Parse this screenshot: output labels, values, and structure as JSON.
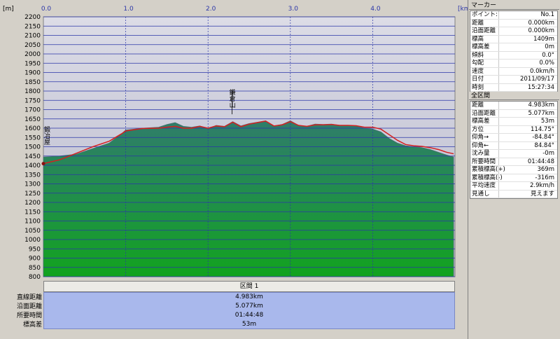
{
  "chart": {
    "y_unit": "[m]",
    "x_unit": "[km]",
    "y_ticks": [
      "2200",
      "2150",
      "2100",
      "2050",
      "2000",
      "1950",
      "1900",
      "1850",
      "1800",
      "1750",
      "1700",
      "1650",
      "1600",
      "1550",
      "1500",
      "1450",
      "1400",
      "1350",
      "1300",
      "1250",
      "1200",
      "1150",
      "1100",
      "1050",
      "1000",
      "950",
      "900",
      "850",
      "800"
    ],
    "x_ticks": [
      "0.0",
      "1.0",
      "2.0",
      "3.0",
      "4.0"
    ],
    "annotations": [
      {
        "label": "鍛冶屋",
        "x": 0.0,
        "y": 1460
      },
      {
        "label": "鎌倉山",
        "x": 2.25,
        "y": 1660
      }
    ],
    "section_title": "区間 1",
    "summary_labels": [
      "直線距離",
      "沿面距離",
      "所要時間",
      "標高差"
    ],
    "summary_values": [
      "4.983km",
      "5.077km",
      "01:44:48",
      "53m"
    ]
  },
  "chart_data": {
    "type": "area",
    "xlabel": "[km]",
    "ylabel": "[m]",
    "xlim": [
      0,
      5.0
    ],
    "ylim": [
      800,
      2200
    ],
    "grid": true,
    "series": [
      {
        "x": [
          0.0,
          0.2,
          0.4,
          0.6,
          0.8,
          0.95,
          1.0,
          1.2,
          1.4,
          1.5,
          1.6,
          1.7,
          1.8,
          1.9,
          2.0,
          2.1,
          2.2,
          2.3,
          2.4,
          2.5,
          2.6,
          2.7,
          2.8,
          2.9,
          3.0,
          3.1,
          3.2,
          3.3,
          3.4,
          3.5,
          3.6,
          3.7,
          3.8,
          3.9,
          4.0,
          4.1,
          4.2,
          4.3,
          4.4,
          4.5,
          4.6,
          4.7,
          4.8,
          4.9,
          4.983
        ],
        "y": [
          1445,
          1450,
          1460,
          1490,
          1520,
          1570,
          1590,
          1600,
          1605,
          1620,
          1630,
          1610,
          1605,
          1612,
          1598,
          1615,
          1610,
          1635,
          1612,
          1625,
          1632,
          1640,
          1612,
          1620,
          1640,
          1615,
          1610,
          1622,
          1620,
          1622,
          1615,
          1615,
          1612,
          1600,
          1595,
          1580,
          1545,
          1520,
          1505,
          1500,
          1495,
          1485,
          1470,
          1455,
          1445
        ],
        "color": "#2a8a4a"
      },
      {
        "x": [
          0.0,
          0.2,
          0.4,
          0.6,
          0.8,
          0.95,
          1.0,
          1.2,
          1.4,
          1.5,
          1.6,
          1.7,
          1.8,
          1.9,
          2.0,
          2.1,
          2.2,
          2.3,
          2.4,
          2.5,
          2.6,
          2.7,
          2.8,
          2.9,
          3.0,
          3.1,
          3.2,
          3.3,
          3.4,
          3.5,
          3.6,
          3.7,
          3.8,
          3.9,
          4.0,
          4.1,
          4.2,
          4.3,
          4.4,
          4.5,
          4.6,
          4.7,
          4.8,
          4.9,
          4.983
        ],
        "y": [
          1409,
          1430,
          1465,
          1500,
          1530,
          1570,
          1585,
          1598,
          1600,
          1605,
          1610,
          1600,
          1600,
          1610,
          1600,
          1612,
          1608,
          1632,
          1608,
          1622,
          1630,
          1638,
          1612,
          1618,
          1635,
          1615,
          1610,
          1618,
          1618,
          1620,
          1615,
          1615,
          1613,
          1605,
          1605,
          1595,
          1565,
          1535,
          1512,
          1505,
          1502,
          1495,
          1485,
          1470,
          1462
        ],
        "color": "#d42020"
      }
    ]
  },
  "marker_panel": {
    "title": "マーカー",
    "rows": [
      {
        "k": "ポイント:",
        "v": "No.1"
      },
      {
        "k": "距離",
        "v": "0.000km"
      },
      {
        "k": "沿面距離",
        "v": "0.000km"
      },
      {
        "k": "標高",
        "v": "1409m"
      },
      {
        "k": "標高差",
        "v": "0m"
      },
      {
        "k": "傾斜",
        "v": "0.0°"
      },
      {
        "k": "勾配",
        "v": "0.0%"
      },
      {
        "k": "速度",
        "v": "0.0km/h"
      },
      {
        "k": "日付",
        "v": "2011/09/17"
      },
      {
        "k": "時刻",
        "v": "15:27:34"
      }
    ]
  },
  "section_panel": {
    "title": "全区間",
    "rows": [
      {
        "k": "距離",
        "v": "4.983km"
      },
      {
        "k": "沿面距離",
        "v": "5.077km"
      },
      {
        "k": "標高差",
        "v": "53m"
      },
      {
        "k": "方位",
        "v": "114.75°"
      },
      {
        "k": "仰角→",
        "v": "-84.84°"
      },
      {
        "k": "仰角←",
        "v": "84.84°"
      },
      {
        "k": "沈み量",
        "v": "-0m"
      },
      {
        "k": "所要時間",
        "v": "01:44:48"
      },
      {
        "k": "累積標高(+)",
        "v": "369m"
      },
      {
        "k": "累積標高(-)",
        "v": "-316m"
      },
      {
        "k": "平均速度",
        "v": "2.9km/h"
      },
      {
        "k": "見通し",
        "v": "見えます"
      }
    ]
  }
}
